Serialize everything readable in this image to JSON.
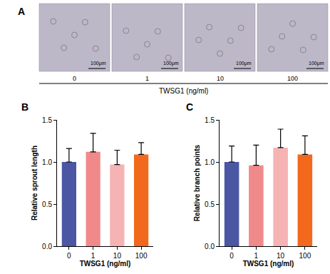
{
  "panel_a": {
    "label": "A",
    "conditions": [
      "0",
      "1",
      "10",
      "100"
    ],
    "scale_bar": "100μm",
    "axis_label": "TWSG1 (ng/ml)"
  },
  "chart_data": [
    {
      "type": "bar",
      "annotations": [
        "B"
      ],
      "categories": [
        "0",
        "1",
        "10",
        "100"
      ],
      "values": [
        1.0,
        1.12,
        0.97,
        1.09
      ],
      "errors": [
        0.16,
        0.22,
        0.17,
        0.14
      ],
      "colors": [
        "#4b57a3",
        "#f08a8a",
        "#f6b3b3",
        "#f2691e"
      ],
      "xlabel": "TWSG1 (ng/ml)",
      "ylabel": "Relative sprout length",
      "ylim": [
        0,
        1.5
      ],
      "yticks": [
        {
          "value": 0,
          "label": "0.0"
        },
        {
          "value": 0.5,
          "label": "0.5"
        },
        {
          "value": 1,
          "label": "1.0"
        },
        {
          "value": 1.5,
          "label": "1.5"
        }
      ],
      "grid": false
    },
    {
      "type": "bar",
      "annotations": [
        "C"
      ],
      "categories": [
        "0",
        "1",
        "10",
        "100"
      ],
      "values": [
        1.0,
        0.96,
        1.17,
        1.09
      ],
      "errors": [
        0.19,
        0.24,
        0.22,
        0.22
      ],
      "colors": [
        "#4b57a3",
        "#f08a8a",
        "#f6b3b3",
        "#f2691e"
      ],
      "xlabel": "TWSG1 (ng/ml)",
      "ylabel": "Relative branch points",
      "ylim": [
        0,
        1.5
      ],
      "yticks": [
        {
          "value": 0,
          "label": "0.0"
        },
        {
          "value": 0.5,
          "label": "0.5"
        },
        {
          "value": 1,
          "label": "1.0"
        },
        {
          "value": 1.5,
          "label": "1.5"
        }
      ],
      "grid": false
    }
  ]
}
